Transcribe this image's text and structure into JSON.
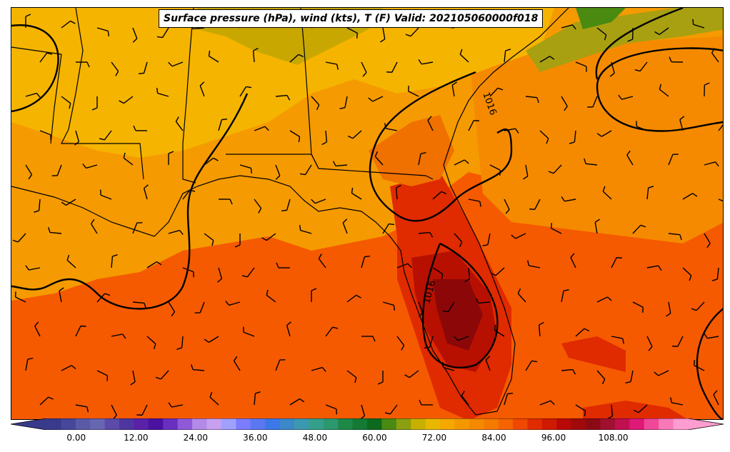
{
  "title": "Surface pressure (hPa), wind (kts), T (F) Valid: 202105060000f018",
  "isobar_labels": [
    "1016",
    "1016"
  ],
  "colorbar": {
    "ticks": [
      "0.00",
      "12.00",
      "24.00",
      "36.00",
      "48.00",
      "60.00",
      "72.00",
      "84.00",
      "96.00",
      "108.00"
    ],
    "tick_values": [
      0,
      12,
      24,
      36,
      48,
      60,
      72,
      84,
      96,
      108
    ],
    "min": -6,
    "max": 123,
    "step": 3,
    "colors": [
      "#3a3a8c",
      "#46469a",
      "#5a5aa8",
      "#6666b2",
      "#5b4aa8",
      "#4f35a0",
      "#5a20a8",
      "#4a12a0",
      "#6a2fc0",
      "#8f5ad8",
      "#b48ae8",
      "#c8a0f0",
      "#a0a0ff",
      "#7c7cff",
      "#5a78f0",
      "#3c78e8",
      "#3c88c8",
      "#3c98b0",
      "#34a08c",
      "#2c9870",
      "#1e8848",
      "#147a34",
      "#0c6a1e",
      "#4a8a10",
      "#8aa010",
      "#c8b000",
      "#e8b800",
      "#f5a800",
      "#f59800",
      "#f58a00",
      "#f57a00",
      "#f56400",
      "#f04800",
      "#e02c00",
      "#d01a00",
      "#b80808",
      "#a00a0a",
      "#8c0a14",
      "#a01030",
      "#c01050",
      "#e01878",
      "#f04898",
      "#f878b8",
      "#ff9cd0"
    ]
  },
  "map": {
    "temperature_colors": {
      "gulf": "#f55500",
      "land_base": "#f5a000",
      "north_warm": "#f5b800",
      "cool_green": "#a0a010",
      "hot": "#e82c00",
      "very_hot": "#b81000",
      "hottest": "#8c0808"
    }
  }
}
